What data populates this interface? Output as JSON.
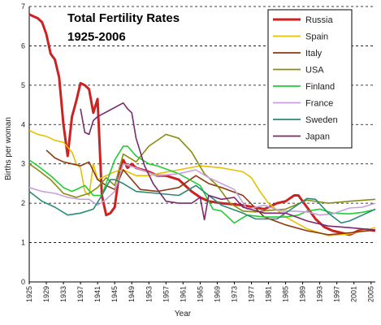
{
  "chart_data": {
    "type": "line",
    "title_lines": [
      "Total Fertility Rates",
      "1925-2006"
    ],
    "xlabel": "Year",
    "ylabel": "Births per woman",
    "xlim": [
      1925,
      2006
    ],
    "ylim": [
      0,
      7
    ],
    "yticks": [
      "0",
      "1",
      "2",
      "3",
      "4",
      "5",
      "6",
      "7"
    ],
    "xticks": [
      "1925",
      "1929",
      "1933",
      "1937",
      "1941",
      "1945",
      "1949",
      "1953",
      "1957",
      "1961",
      "1965",
      "1969",
      "1973",
      "1977",
      "1981",
      "1985",
      "1989",
      "1993",
      "1997",
      "2001",
      "2005"
    ],
    "grid": "horizontal-dashed",
    "legend_position": "top-right",
    "series": [
      {
        "name": "Russia",
        "color": "#cc2222",
        "x": [
          1925,
          1927,
          1928,
          1929,
          1930,
          1931,
          1932,
          1933,
          1934,
          1935,
          1936,
          1937,
          1938,
          1939,
          1940,
          1941,
          1942,
          1943,
          1944,
          1945,
          1946,
          1947,
          1948,
          1949,
          1950,
          1953,
          1955,
          1957,
          1960,
          1963,
          1965,
          1967,
          1970,
          1975,
          1980,
          1983,
          1985,
          1987,
          1988,
          1990,
          1992,
          1994,
          1996,
          1998,
          2000,
          2002,
          2004,
          2006
        ],
        "y": [
          6.8,
          6.7,
          6.6,
          6.3,
          5.8,
          5.65,
          5.2,
          4.0,
          3.2,
          4.2,
          4.6,
          5.05,
          5.0,
          4.9,
          4.3,
          4.65,
          2.2,
          1.7,
          1.75,
          1.9,
          2.7,
          3.1,
          2.9,
          3.0,
          2.9,
          2.8,
          2.7,
          2.7,
          2.6,
          2.3,
          2.15,
          2.05,
          2.0,
          1.95,
          1.85,
          2.0,
          2.05,
          2.2,
          2.2,
          1.9,
          1.6,
          1.4,
          1.3,
          1.25,
          1.2,
          1.3,
          1.33,
          1.3
        ]
      },
      {
        "name": "Spain",
        "color": "#e8c000",
        "x": [
          1925,
          1926,
          1927,
          1929,
          1931,
          1933,
          1935,
          1936,
          1937,
          1938,
          1939,
          1940,
          1941,
          1943,
          1945,
          1947,
          1950,
          1953,
          1955,
          1960,
          1965,
          1970,
          1975,
          1977,
          1979,
          1981,
          1985,
          1990,
          1995,
          2000,
          2003,
          2006
        ],
        "y": [
          3.85,
          3.8,
          3.75,
          3.7,
          3.6,
          3.55,
          3.3,
          3.0,
          2.9,
          2.3,
          2.2,
          3.0,
          2.6,
          2.7,
          2.8,
          2.85,
          2.7,
          2.7,
          2.75,
          2.85,
          2.95,
          2.9,
          2.8,
          2.65,
          2.3,
          2.0,
          1.65,
          1.35,
          1.18,
          1.22,
          1.3,
          1.38
        ]
      },
      {
        "name": "Italy",
        "color": "#8b3a0f",
        "x": [
          1929,
          1931,
          1933,
          1935,
          1937,
          1939,
          1941,
          1943,
          1945,
          1947,
          1949,
          1951,
          1955,
          1960,
          1964,
          1967,
          1970,
          1975,
          1980,
          1985,
          1990,
          1995,
          2000,
          2006
        ],
        "y": [
          3.35,
          3.15,
          3.05,
          3.0,
          2.95,
          3.05,
          2.6,
          2.45,
          2.35,
          2.85,
          2.6,
          2.35,
          2.3,
          2.4,
          2.7,
          2.5,
          2.4,
          2.2,
          1.65,
          1.45,
          1.3,
          1.2,
          1.25,
          1.32
        ]
      },
      {
        "name": "USA",
        "color": "#8b8b10",
        "x": [
          1925,
          1927,
          1930,
          1933,
          1936,
          1939,
          1941,
          1943,
          1945,
          1947,
          1950,
          1953,
          1957,
          1960,
          1963,
          1966,
          1969,
          1972,
          1975,
          1978,
          1981,
          1985,
          1990,
          1995,
          2000,
          2006
        ],
        "y": [
          3.0,
          2.85,
          2.6,
          2.25,
          2.15,
          2.25,
          2.4,
          2.65,
          2.45,
          3.25,
          3.05,
          3.45,
          3.75,
          3.65,
          3.3,
          2.75,
          2.45,
          2.0,
          1.8,
          1.78,
          1.82,
          1.85,
          2.08,
          2.0,
          2.05,
          2.1
        ]
      },
      {
        "name": "Finland",
        "color": "#22cc33",
        "x": [
          1925,
          1927,
          1930,
          1933,
          1935,
          1938,
          1940,
          1942,
          1945,
          1947,
          1948,
          1950,
          1953,
          1955,
          1960,
          1965,
          1968,
          1970,
          1973,
          1976,
          1980,
          1985,
          1988,
          1990,
          1993,
          1996,
          2000,
          2003,
          2006
        ],
        "y": [
          3.1,
          2.95,
          2.7,
          2.4,
          2.3,
          2.45,
          2.2,
          2.2,
          3.1,
          3.45,
          3.45,
          3.2,
          3.0,
          2.95,
          2.75,
          2.45,
          1.85,
          1.8,
          1.5,
          1.7,
          1.65,
          1.65,
          1.7,
          1.8,
          1.85,
          1.75,
          1.73,
          1.77,
          1.84
        ]
      },
      {
        "name": "France",
        "color": "#c8a0e0",
        "x": [
          1925,
          1928,
          1931,
          1934,
          1937,
          1939,
          1941,
          1943,
          1945,
          1947,
          1950,
          1955,
          1960,
          1964,
          1967,
          1970,
          1973,
          1976,
          1980,
          1984,
          1987,
          1990,
          1993,
          1996,
          2000,
          2003,
          2006
        ],
        "y": [
          2.4,
          2.3,
          2.25,
          2.15,
          2.1,
          2.1,
          1.95,
          2.1,
          2.3,
          3.0,
          2.9,
          2.7,
          2.75,
          2.85,
          2.65,
          2.5,
          2.35,
          1.85,
          1.95,
          1.8,
          1.8,
          1.78,
          1.7,
          1.73,
          1.88,
          1.9,
          2.0
        ]
      },
      {
        "name": "Sweden",
        "color": "#2a8a78",
        "x": [
          1925,
          1928,
          1931,
          1934,
          1937,
          1940,
          1942,
          1944,
          1945,
          1947,
          1950,
          1955,
          1960,
          1964,
          1967,
          1970,
          1975,
          1978,
          1983,
          1987,
          1990,
          1992,
          1995,
          1998,
          2000,
          2003,
          2006
        ],
        "y": [
          2.3,
          2.05,
          1.9,
          1.7,
          1.75,
          1.85,
          2.2,
          2.6,
          2.6,
          2.5,
          2.3,
          2.25,
          2.2,
          2.45,
          2.2,
          1.95,
          1.75,
          1.6,
          1.6,
          1.9,
          2.12,
          2.1,
          1.75,
          1.5,
          1.55,
          1.7,
          1.85
        ]
      },
      {
        "name": "Japan",
        "color": "#7a2a6e",
        "x": [
          1937,
          1938,
          1939,
          1940,
          1941,
          1947,
          1948,
          1949,
          1950,
          1952,
          1954,
          1957,
          1960,
          1963,
          1965,
          1966,
          1967,
          1970,
          1973,
          1975,
          1980,
          1985,
          1990,
          1995,
          2000,
          2006
        ],
        "y": [
          4.4,
          3.8,
          3.75,
          4.1,
          4.2,
          4.55,
          4.4,
          4.3,
          3.65,
          2.95,
          2.5,
          2.05,
          2.0,
          2.0,
          2.15,
          1.58,
          2.2,
          2.1,
          2.15,
          1.9,
          1.75,
          1.75,
          1.55,
          1.42,
          1.38,
          1.32
        ]
      }
    ]
  }
}
